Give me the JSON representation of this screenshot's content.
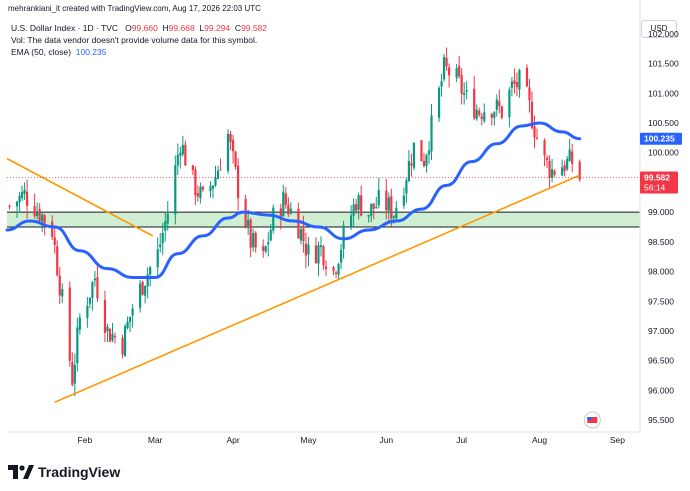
{
  "header": {
    "credit": "mehrankiani_it created with TradingView.com, Aug 17, 2026 22:03 UTC"
  },
  "legend": {
    "symbol": "U.S. Dollar Index · 1D · TVC",
    "open_label": "O",
    "open": "99.660",
    "high_label": "H",
    "high": "99.668",
    "low_label": "L",
    "low": "99.294",
    "close_label": "C",
    "close": "99.582",
    "volume_note": "Vol: The data vendor doesn't provide volume data for this symbol.",
    "ema_label": "EMA (50, close)",
    "ema_value": "100.235"
  },
  "price_axis": {
    "currency": "USD",
    "ticks": [
      "102.000",
      "101.500",
      "101.000",
      "100.500",
      "100.000",
      "99.000",
      "98.500",
      "98.000",
      "97.500",
      "97.000",
      "96.500",
      "96.000",
      "95.500"
    ],
    "ema_tag": "100.235",
    "price_tag": "99.582",
    "countdown": "56:14"
  },
  "time_axis": {
    "labels": [
      "Feb",
      "Mar",
      "Apr",
      "May",
      "Jun",
      "Jul",
      "Aug",
      "Sep"
    ]
  },
  "footer": {
    "brand": "TradingView"
  },
  "colors": {
    "up": "#089981",
    "down": "#f23645",
    "ema": "#2962ff",
    "trendline": "#ff9800",
    "zone_fill": "#c8ebc9",
    "zone_border": "#131722",
    "price_line": "#f23645"
  },
  "chart_data": {
    "type": "line",
    "title": "U.S. Dollar Index · 1D · TVC",
    "xlabel": "",
    "ylabel": "",
    "ylim": [
      95.3,
      102.3
    ],
    "x_range": [
      "2026-01-01",
      "2026-09-10"
    ],
    "series": [
      {
        "name": "EMA (50, close)",
        "points": [
          [
            "2026-01-01",
            98.7
          ],
          [
            "2026-01-10",
            98.85
          ],
          [
            "2026-01-20",
            98.75
          ],
          [
            "2026-01-30",
            98.35
          ],
          [
            "2026-02-10",
            98.05
          ],
          [
            "2026-02-20",
            97.9
          ],
          [
            "2026-03-01",
            97.9
          ],
          [
            "2026-03-10",
            98.3
          ],
          [
            "2026-03-20",
            98.6
          ],
          [
            "2026-03-30",
            98.9
          ],
          [
            "2026-04-05",
            99.0
          ],
          [
            "2026-04-15",
            98.95
          ],
          [
            "2026-04-25",
            98.85
          ],
          [
            "2026-05-05",
            98.75
          ],
          [
            "2026-05-15",
            98.55
          ],
          [
            "2026-05-25",
            98.7
          ],
          [
            "2026-06-05",
            98.85
          ],
          [
            "2026-06-15",
            99.05
          ],
          [
            "2026-06-25",
            99.45
          ],
          [
            "2026-07-05",
            99.85
          ],
          [
            "2026-07-15",
            100.15
          ],
          [
            "2026-07-25",
            100.45
          ],
          [
            "2026-08-01",
            100.5
          ],
          [
            "2026-08-10",
            100.35
          ],
          [
            "2026-08-17",
            100.235
          ]
        ]
      },
      {
        "name": "",
        "kind": "trendline-upper",
        "points": [
          [
            "2026-01-01",
            99.9
          ],
          [
            "2026-02-28",
            98.6
          ]
        ]
      },
      {
        "name": "",
        "kind": "trendline-lower",
        "points": [
          [
            "2026-01-20",
            95.8
          ],
          [
            "2026-08-17",
            99.62
          ]
        ]
      },
      {
        "name": "",
        "kind": "support-zone",
        "range": [
          98.75,
          99.0
        ]
      },
      {
        "name": "",
        "kind": "daily-close",
        "points": [
          [
            "2026-01-02",
            99.1
          ],
          [
            "2026-01-08",
            99.3
          ],
          [
            "2026-01-14",
            99.0
          ],
          [
            "2026-01-19",
            98.7
          ],
          [
            "2026-01-23",
            97.5
          ],
          [
            "2026-01-27",
            96.2
          ],
          [
            "2026-01-30",
            97.2
          ],
          [
            "2026-02-05",
            97.9
          ],
          [
            "2026-02-10",
            97.0
          ],
          [
            "2026-02-16",
            96.8
          ],
          [
            "2026-02-20",
            97.4
          ],
          [
            "2026-02-25",
            97.9
          ],
          [
            "2026-03-02",
            98.3
          ],
          [
            "2026-03-06",
            99.0
          ],
          [
            "2026-03-11",
            100.2
          ],
          [
            "2026-03-16",
            99.5
          ],
          [
            "2026-03-20",
            99.2
          ],
          [
            "2026-03-25",
            99.6
          ],
          [
            "2026-03-30",
            100.3
          ],
          [
            "2026-04-03",
            99.4
          ],
          [
            "2026-04-08",
            98.5
          ],
          [
            "2026-04-13",
            98.2
          ],
          [
            "2026-04-17",
            98.9
          ],
          [
            "2026-04-21",
            99.2
          ],
          [
            "2026-04-26",
            98.9
          ],
          [
            "2026-05-01",
            98.3
          ],
          [
            "2026-05-06",
            98.4
          ],
          [
            "2026-05-11",
            98.0
          ],
          [
            "2026-05-15",
            98.6
          ],
          [
            "2026-05-20",
            99.2
          ],
          [
            "2026-05-25",
            99.0
          ],
          [
            "2026-05-30",
            99.2
          ],
          [
            "2026-06-04",
            99.0
          ],
          [
            "2026-06-08",
            99.5
          ],
          [
            "2026-06-12",
            100.1
          ],
          [
            "2026-06-16",
            99.9
          ],
          [
            "2026-06-20",
            100.6
          ],
          [
            "2026-06-24",
            101.4
          ],
          [
            "2026-06-28",
            101.3
          ],
          [
            "2026-07-03",
            100.9
          ],
          [
            "2026-07-08",
            100.7
          ],
          [
            "2026-07-12",
            100.8
          ],
          [
            "2026-07-17",
            100.7
          ],
          [
            "2026-07-21",
            101.1
          ],
          [
            "2026-07-25",
            101.2
          ],
          [
            "2026-07-29",
            100.6
          ],
          [
            "2026-08-02",
            99.9
          ],
          [
            "2026-08-06",
            99.7
          ],
          [
            "2026-08-10",
            99.8
          ],
          [
            "2026-08-14",
            99.85
          ],
          [
            "2026-08-17",
            99.582
          ]
        ]
      }
    ]
  }
}
